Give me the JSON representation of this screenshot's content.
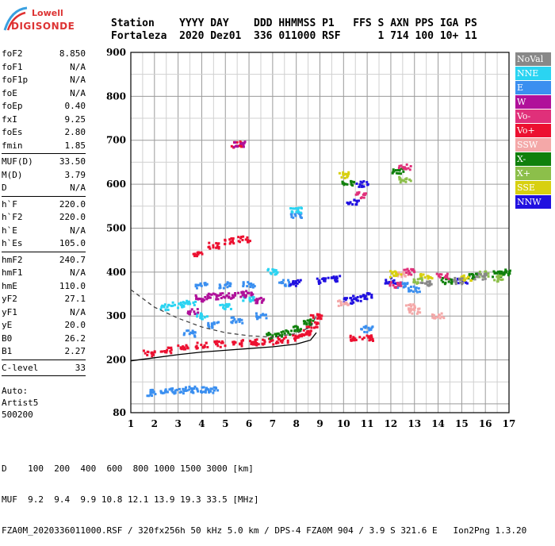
{
  "logo": {
    "lowell": "Lowell",
    "digisonde": "DIGISONDE"
  },
  "header": {
    "row1": "Station    YYYY DAY    DDD HHMMSS P1   FFS S AXN PPS IGA PS",
    "row2": "Fortaleza  2020 Dez01  336 011000 RSF      1 714 100 10+ 11"
  },
  "params": {
    "group1": [
      {
        "k": "foF2",
        "v": "8.850"
      },
      {
        "k": "foF1",
        "v": "N/A"
      },
      {
        "k": "foF1p",
        "v": "N/A"
      },
      {
        "k": "foE",
        "v": "N/A"
      },
      {
        "k": "foEp",
        "v": "0.40"
      },
      {
        "k": "fxI",
        "v": "9.25"
      },
      {
        "k": "foEs",
        "v": "2.80"
      },
      {
        "k": "fmin",
        "v": "1.85"
      }
    ],
    "group2": [
      {
        "k": "MUF(D)",
        "v": "33.50"
      },
      {
        "k": "M(D)",
        "v": "3.79"
      },
      {
        "k": "D",
        "v": "N/A"
      }
    ],
    "group3": [
      {
        "k": "h`F",
        "v": "220.0"
      },
      {
        "k": "h`F2",
        "v": "220.0"
      },
      {
        "k": "h`E",
        "v": "N/A"
      },
      {
        "k": "h`Es",
        "v": "105.0"
      }
    ],
    "group4": [
      {
        "k": "hmF2",
        "v": "240.7"
      },
      {
        "k": "hmF1",
        "v": "N/A"
      },
      {
        "k": "hmE",
        "v": "110.0"
      },
      {
        "k": "yF2",
        "v": "27.1"
      },
      {
        "k": "yF1",
        "v": "N/A"
      },
      {
        "k": "yE",
        "v": "20.0"
      },
      {
        "k": "B0",
        "v": "26.2"
      },
      {
        "k": "B1",
        "v": "2.27"
      }
    ],
    "group5": [
      {
        "k": "C-level",
        "v": "33"
      }
    ]
  },
  "auto": {
    "line1": "Auto:",
    "line2": "Artist5",
    "line3": "500200"
  },
  "legend": [
    {
      "label": "NoVal",
      "color": "#888888"
    },
    {
      "label": "NNE",
      "color": "#2ad4f2"
    },
    {
      "label": "E",
      "color": "#3a8ff0"
    },
    {
      "label": "W",
      "color": "#b0109a"
    },
    {
      "label": "Vo-",
      "color": "#e0307a"
    },
    {
      "label": "Vo+",
      "color": "#ec1030"
    },
    {
      "label": "SSW",
      "color": "#f4a8a8"
    },
    {
      "label": "X-",
      "color": "#10800c"
    },
    {
      "label": "X+",
      "color": "#8cbf4a"
    },
    {
      "label": "SSE",
      "color": "#d8d010"
    },
    {
      "label": "NNW",
      "color": "#2010e0"
    }
  ],
  "footer": {
    "line1": "D    100  200  400  600  800 1000 1500 3000 [km]",
    "line2": "MUF  9.2  9.4  9.9 10.8 12.1 13.9 19.3 33.5 [MHz]",
    "line3": "FZA0M_2020336011000.RSF / 320fx256h 50 kHz 5.0 km / DPS-4 FZA0M 904 / 3.9 S 321.6 E   Ion2Png 1.3.20"
  },
  "chart_data": {
    "type": "scatter",
    "xlim": [
      1,
      17
    ],
    "ylim": [
      80,
      900
    ],
    "xticks": [
      1,
      2,
      3,
      4,
      5,
      6,
      7,
      8,
      9,
      10,
      11,
      12,
      13,
      14,
      15,
      16,
      17
    ],
    "yticks": [
      80,
      200,
      300,
      400,
      500,
      600,
      700,
      800,
      900
    ],
    "grid": true,
    "legend_position": "right",
    "series": [
      {
        "name": "Vo+",
        "color": "#ec1030",
        "points": [
          [
            1.8,
            215
          ],
          [
            2.5,
            222
          ],
          [
            3.2,
            228
          ],
          [
            4.0,
            233
          ],
          [
            4.8,
            236
          ],
          [
            5.5,
            238
          ],
          [
            6.2,
            240
          ],
          [
            6.8,
            242
          ],
          [
            7.4,
            245
          ],
          [
            8.0,
            250
          ],
          [
            8.4,
            262
          ],
          [
            8.7,
            280
          ],
          [
            8.85,
            300
          ],
          [
            4.5,
            460
          ],
          [
            5.2,
            470
          ],
          [
            5.8,
            475
          ],
          [
            5.5,
            690
          ],
          [
            3.8,
            440
          ],
          [
            10.5,
            250
          ],
          [
            11.0,
            250
          ]
        ]
      },
      {
        "name": "E",
        "color": "#3a8ff0",
        "points": [
          [
            1.8,
            125
          ],
          [
            2.5,
            128
          ],
          [
            3.0,
            130
          ],
          [
            3.5,
            132
          ],
          [
            4.0,
            133
          ],
          [
            4.5,
            132
          ],
          [
            3.5,
            260
          ],
          [
            4.5,
            280
          ],
          [
            5.5,
            290
          ],
          [
            6.5,
            300
          ],
          [
            4.0,
            370
          ],
          [
            5.0,
            370
          ],
          [
            6.0,
            372
          ],
          [
            7.5,
            375
          ],
          [
            8.0,
            530
          ],
          [
            12.5,
            370
          ],
          [
            13.0,
            360
          ],
          [
            11.0,
            270
          ]
        ]
      },
      {
        "name": "NNE",
        "color": "#2ad4f2",
        "points": [
          [
            2.5,
            320
          ],
          [
            3.0,
            325
          ],
          [
            3.5,
            330
          ],
          [
            4.0,
            300
          ],
          [
            5.0,
            320
          ],
          [
            6.0,
            340
          ],
          [
            7.0,
            400
          ],
          [
            8.0,
            540
          ]
        ]
      },
      {
        "name": "W",
        "color": "#b0109a",
        "points": [
          [
            4.0,
            340
          ],
          [
            4.5,
            345
          ],
          [
            5.0,
            345
          ],
          [
            5.5,
            348
          ],
          [
            6.0,
            350
          ],
          [
            6.5,
            335
          ],
          [
            5.6,
            690
          ],
          [
            3.6,
            310
          ]
        ]
      },
      {
        "name": "X-",
        "color": "#10800c",
        "points": [
          [
            7.0,
            255
          ],
          [
            7.5,
            260
          ],
          [
            8.0,
            270
          ],
          [
            8.5,
            285
          ],
          [
            15.5,
            390
          ],
          [
            16.5,
            395
          ],
          [
            16.8,
            400
          ],
          [
            10.2,
            600
          ],
          [
            12.3,
            630
          ],
          [
            14.4,
            380
          ]
        ]
      },
      {
        "name": "NNW",
        "color": "#2010e0",
        "points": [
          [
            8.0,
            375
          ],
          [
            9.0,
            380
          ],
          [
            9.6,
            385
          ],
          [
            10.2,
            335
          ],
          [
            10.6,
            340
          ],
          [
            11.0,
            345
          ],
          [
            10.4,
            560
          ],
          [
            10.8,
            600
          ],
          [
            12.0,
            380
          ],
          [
            15.0,
            380
          ]
        ]
      },
      {
        "name": "SSW",
        "color": "#f4a8a8",
        "points": [
          [
            12.8,
            320
          ],
          [
            13.0,
            310
          ],
          [
            14.0,
            300
          ],
          [
            10.0,
            330
          ],
          [
            12.5,
            395
          ]
        ]
      },
      {
        "name": "SSE",
        "color": "#d8d010",
        "points": [
          [
            12.2,
            395
          ],
          [
            13.5,
            390
          ],
          [
            15.2,
            385
          ],
          [
            10.0,
            620
          ]
        ]
      },
      {
        "name": "Vo-",
        "color": "#e0307a",
        "points": [
          [
            12.2,
            370
          ],
          [
            12.8,
            400
          ],
          [
            14.2,
            390
          ],
          [
            10.7,
            575
          ],
          [
            12.6,
            640
          ]
        ]
      },
      {
        "name": "X+",
        "color": "#8cbf4a",
        "points": [
          [
            16.0,
            395
          ],
          [
            16.6,
            385
          ],
          [
            13.2,
            380
          ],
          [
            12.6,
            610
          ]
        ]
      },
      {
        "name": "NoVal",
        "color": "#888888",
        "points": [
          [
            13.5,
            375
          ],
          [
            14.8,
            380
          ],
          [
            15.8,
            390
          ]
        ]
      }
    ],
    "profile_curve": {
      "color": "#000000",
      "points": [
        [
          1.0,
          198
        ],
        [
          2.0,
          205
        ],
        [
          3.0,
          212
        ],
        [
          4.0,
          218
        ],
        [
          5.0,
          222
        ],
        [
          6.0,
          226
        ],
        [
          7.0,
          230
        ],
        [
          8.0,
          236
        ],
        [
          8.6,
          245
        ],
        [
          8.85,
          262
        ]
      ]
    },
    "model_curve": {
      "color": "#444444",
      "points": [
        [
          1.0,
          360
        ],
        [
          1.5,
          340
        ],
        [
          2.0,
          320
        ],
        [
          3.0,
          295
        ],
        [
          4.0,
          275
        ],
        [
          5.0,
          262
        ],
        [
          6.0,
          255
        ],
        [
          7.0,
          252
        ],
        [
          8.0,
          260
        ],
        [
          8.6,
          275
        ],
        [
          8.85,
          300
        ]
      ]
    }
  }
}
